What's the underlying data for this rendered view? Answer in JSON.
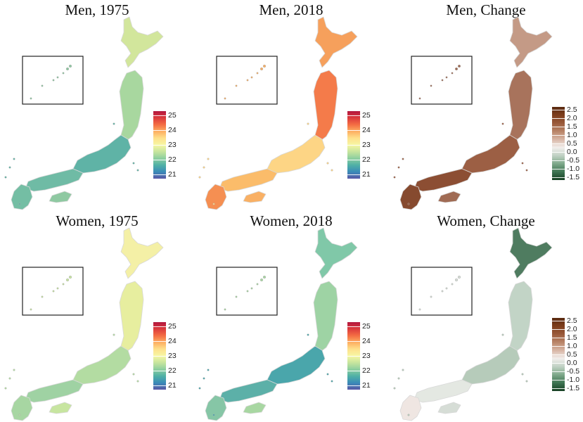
{
  "panels": [
    {
      "title": "Men, 1975",
      "scale": "bmi",
      "fills": {
        "hokkaido": "#d2e69c",
        "north": "#a8d79f",
        "central": "#5fb3a6",
        "west": "#6fbba5",
        "south": "#74bea4",
        "islands": "#8fc9a2"
      }
    },
    {
      "title": "Men, 2018",
      "scale": "bmi",
      "fills": {
        "hokkaido": "#f6a05c",
        "north": "#f47b4a",
        "central": "#fdd585",
        "west": "#fbbc6a",
        "south": "#f58f52",
        "islands": "#f9b064"
      }
    },
    {
      "title": "Men, Change",
      "scale": "change",
      "fills": {
        "hokkaido": "#c49a86",
        "north": "#a8735c",
        "central": "#9c5f44",
        "west": "#8c4e33",
        "south": "#864a2f",
        "islands": "#a06b54"
      }
    },
    {
      "title": "Women, 1975",
      "scale": "bmi",
      "fills": {
        "hokkaido": "#f4f0a6",
        "north": "#e7ee9f",
        "central": "#b3dca2",
        "west": "#9fd2a3",
        "south": "#a7d6a2",
        "islands": "#c7e5a0"
      }
    },
    {
      "title": "Women, 2018",
      "scale": "bmi",
      "fills": {
        "hokkaido": "#80c8a8",
        "north": "#9ed3a4",
        "central": "#4aa6ab",
        "west": "#5cb0a8",
        "south": "#86c6a6",
        "islands": "#a8d7a2"
      }
    },
    {
      "title": "Women, Change",
      "scale": "change",
      "fills": {
        "hokkaido": "#4f7c60",
        "north": "#c2d4c6",
        "central": "#b6cbba",
        "west": "#e4e8e2",
        "south": "#efe6e2",
        "islands": "#d6ddd6"
      }
    }
  ],
  "legends": {
    "bmi": {
      "ticks": [
        "25",
        "24",
        "23",
        "22",
        "21"
      ],
      "stops": [
        "#b2173f",
        "#dc3a3c",
        "#f46d43",
        "#fdae61",
        "#fee08b",
        "#f7f7a3",
        "#c7e59e",
        "#8ecf9f",
        "#4fb0a6",
        "#3a8bb8",
        "#5a58a6"
      ]
    },
    "change": {
      "ticks": [
        "2.5",
        "2.0",
        "1.5",
        "1.0",
        "0.5",
        "0.0",
        "-0.5",
        "-1.0",
        "-1.5"
      ],
      "stops": [
        "#5a2a10",
        "#7d3d1c",
        "#9a5a3a",
        "#b98568",
        "#d8b6a5",
        "#f2eeec",
        "#bfd1c3",
        "#7ea88a",
        "#3e7452",
        "#153f22"
      ]
    }
  }
}
